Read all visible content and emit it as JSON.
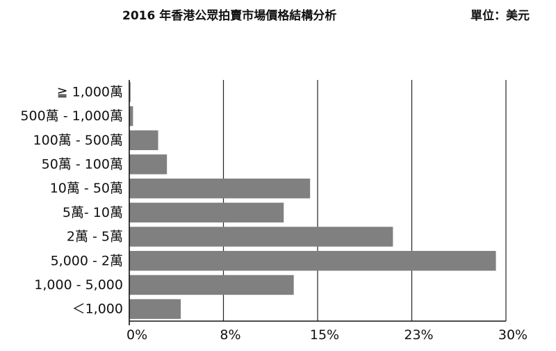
{
  "title": "2016 年香港公眾拍賣市場價格結構分析",
  "unit": "單位：美元",
  "chart_data": {
    "type": "bar",
    "orientation": "horizontal",
    "title": "2016 年香港公眾拍賣市場價格結構分析",
    "unit": "單位：美元",
    "categories": [
      "≧ 1,000萬",
      "500萬 - 1,000萬",
      "100萬 - 500萬",
      "50萬 - 100萬",
      "10萬 - 50萬",
      "5萬- 10萬",
      "2萬 - 5萬",
      "5,000 - 2萬",
      "1,000 - 5,000",
      "＜1,000"
    ],
    "values": [
      0.1,
      0.3,
      2.3,
      3.0,
      14.4,
      12.3,
      21.0,
      29.2,
      13.1,
      4.1
    ],
    "xtick_values": [
      0,
      7.5,
      15,
      22.5,
      30
    ],
    "xtick_labels": [
      "0%",
      "8%",
      "15%",
      "23%",
      "30%"
    ],
    "xlim": [
      0,
      30
    ],
    "grid": "vertical",
    "bar_color": "#808080"
  }
}
